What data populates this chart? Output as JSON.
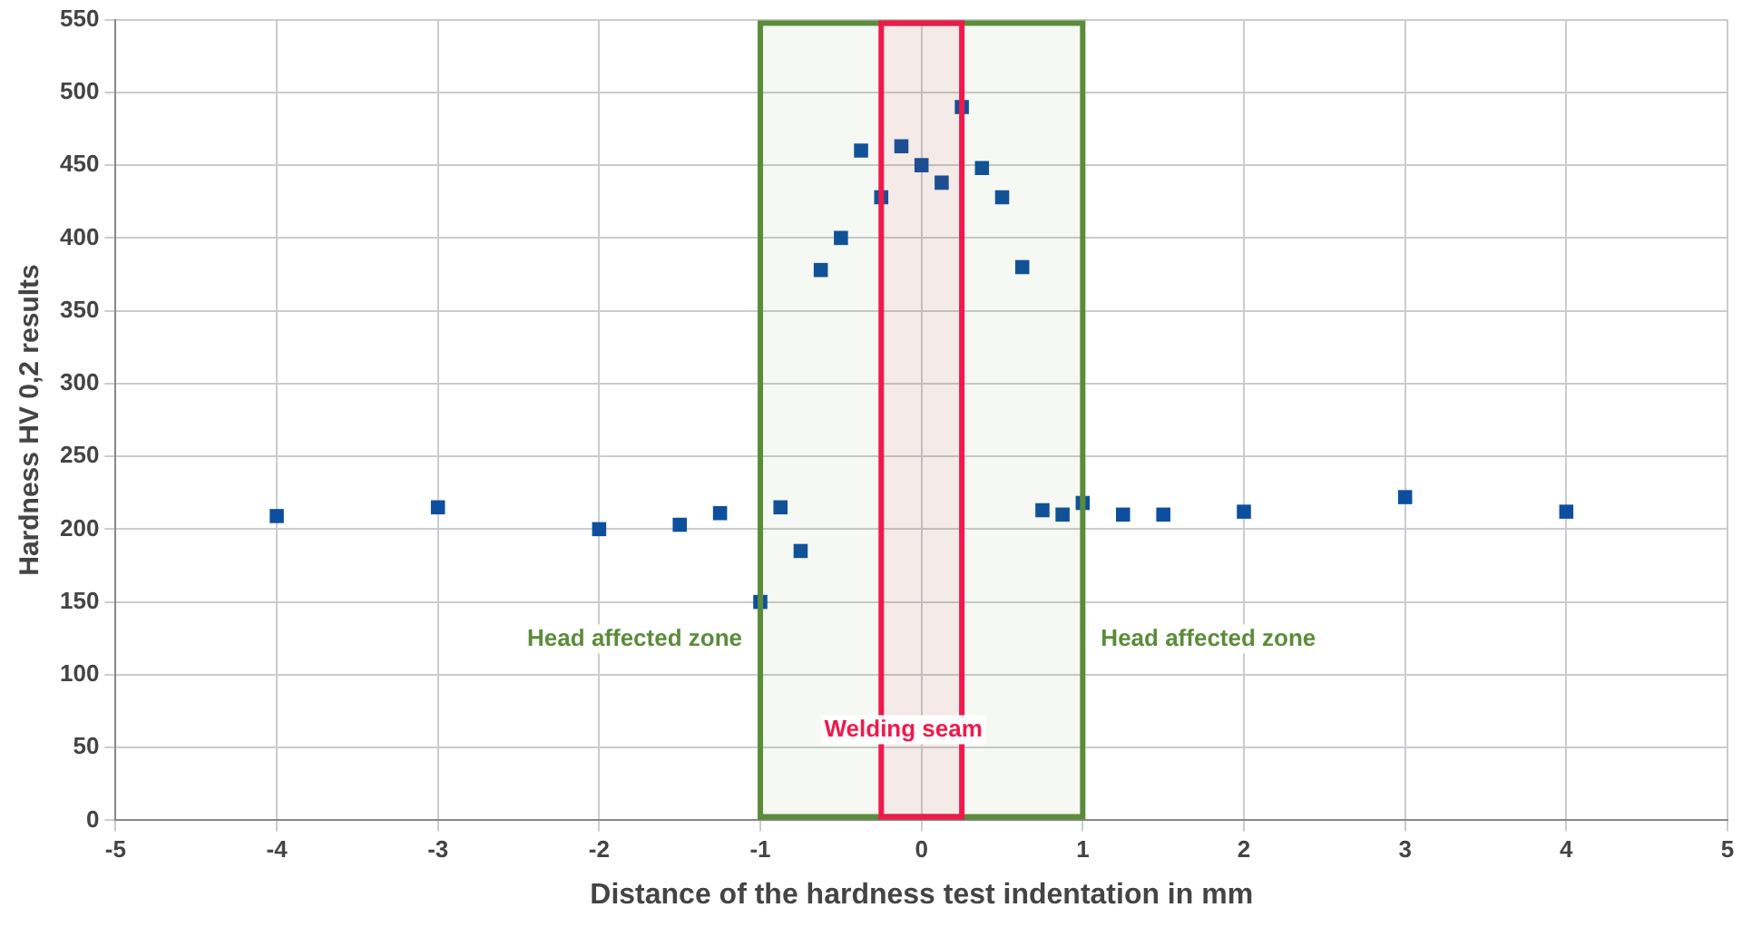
{
  "chart_data": {
    "type": "scatter",
    "xlabel": "Distance of the hardness test indentation in mm",
    "ylabel": "Hardness HV 0,2 results",
    "x": [
      -4,
      -3,
      -2,
      -1.5,
      -1.25,
      -1,
      -0.875,
      -0.75,
      -0.625,
      -0.5,
      -0.375,
      -0.25,
      -0.125,
      0,
      0.125,
      0.25,
      0.375,
      0.5,
      0.625,
      0.75,
      0.875,
      1,
      1.25,
      1.5,
      2,
      3,
      4
    ],
    "series": [
      {
        "color": "#0d4f9e",
        "values": [
          209,
          215,
          200,
          203,
          211,
          150,
          215,
          185,
          378,
          400,
          460,
          428,
          463,
          450,
          438,
          490,
          448,
          428,
          380,
          213,
          210,
          218,
          210,
          210,
          212,
          222,
          212
        ]
      }
    ],
    "marker": "square",
    "grid": true,
    "legend": false,
    "xlim": [
      -5,
      5
    ],
    "xticks": [
      -5,
      -4,
      -3,
      -2,
      -1,
      0,
      1,
      2,
      3,
      4,
      5
    ],
    "ylim": [
      0,
      550
    ],
    "yticks": [
      0,
      50,
      100,
      150,
      200,
      250,
      300,
      350,
      400,
      450,
      500,
      550
    ],
    "bands": [
      {
        "axis": "x",
        "from": -1,
        "to": 1,
        "color": "#5b8c3a"
      },
      {
        "axis": "x",
        "from": -0.25,
        "to": 0.25,
        "color": "#f0194b",
        "label": "Welding seam"
      }
    ],
    "annotations": [
      "Head affected zone",
      "Head affected zone"
    ]
  }
}
